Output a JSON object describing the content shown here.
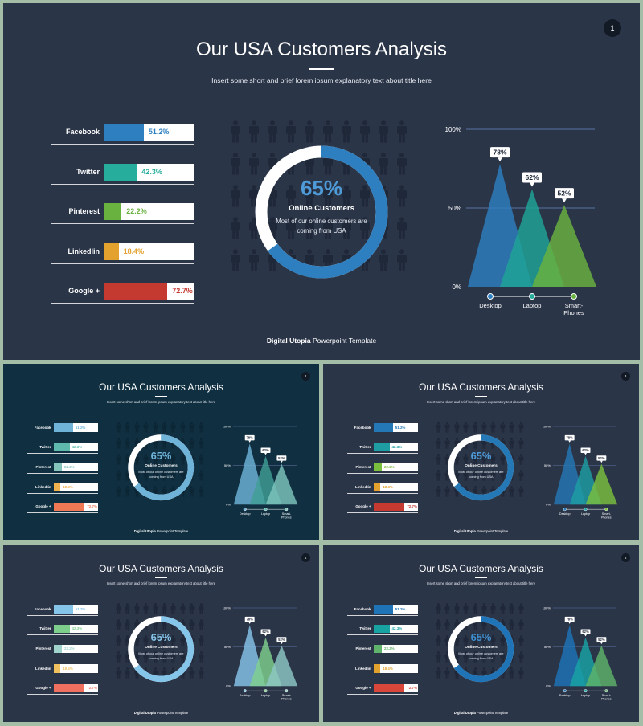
{
  "deck": {
    "title": "Our USA Customers Analysis",
    "subtitle": "Insert some short and brief lorem ipsum explanatory text about title here",
    "footer_bold": "Digital Utopia",
    "footer_rest": " Powerpoint Template"
  },
  "social": [
    {
      "label": "Facebook",
      "value_text": "51.2%",
      "value": 51.2
    },
    {
      "label": "Twitter",
      "value_text": "42.3%",
      "value": 42.3
    },
    {
      "label": "Pinterest",
      "value_text": "22.2%",
      "value": 22.2
    },
    {
      "label": "LinkedIin",
      "value_text": "18.4%",
      "value": 18.4
    },
    {
      "label": "Google +",
      "value_text": "72.7%",
      "value": 72.7
    }
  ],
  "donut": {
    "percent_text": "65%",
    "value": 65,
    "heading": "Online Customers",
    "line1": "Most of our online customers are",
    "line2": "coming from USA"
  },
  "devices": {
    "ticks": [
      "100%",
      "50%",
      "0%"
    ],
    "items": [
      {
        "label": "Desktop",
        "value_text": "78%",
        "value": 78
      },
      {
        "label": "Laptop",
        "value_text": "62%",
        "value": 62
      },
      {
        "label": "Smart-\nPhones",
        "value_text": "52%",
        "value": 52
      }
    ]
  },
  "slides": [
    {
      "number": "1",
      "theme": {
        "bg": "#2b3548",
        "bars": [
          "#2e7fc0",
          "#26ad9b",
          "#6ab23f",
          "#e3a22e",
          "#c43a30"
        ],
        "values": [
          "#2e7fc0",
          "#26ad9b",
          "#6ab23f",
          "#e3a22e",
          "#c43a30"
        ],
        "donut": "#2e7fc0",
        "donut_rest": "#ffffff",
        "donut_pct": "#4e9bd8",
        "people": "#1f2839",
        "tris": [
          "#2e7fc0",
          "#1fa596",
          "#6ab23f"
        ],
        "dots": [
          "#2e7fc0",
          "#26ad9b",
          "#6ab23f"
        ]
      }
    },
    {
      "number": "2",
      "theme": {
        "bg": "#103041",
        "bars": [
          "#6fb3d9",
          "#5fb9ad",
          "#85c4bb",
          "#f0b24e",
          "#f07855"
        ],
        "values": [
          "#6fb3d9",
          "#5fb9ad",
          "#85c4bb",
          "#f0b24e",
          "#f07855"
        ],
        "donut": "#6fb3d9",
        "donut_rest": "#ffffff",
        "donut_pct": "#6fb3d9",
        "people": "#0c2635",
        "tris": [
          "#6fb3d9",
          "#3f9e95",
          "#7ec4bd"
        ],
        "dots": [
          "#6fb3d9",
          "#5fb9ad",
          "#85c4bb"
        ]
      }
    },
    {
      "number": "3",
      "theme": {
        "bg": "#2b3548",
        "bars": [
          "#2478b5",
          "#1e9ea2",
          "#7bbf3e",
          "#e3a22e",
          "#c43a30"
        ],
        "values": [
          "#2478b5",
          "#1e9ea2",
          "#7bbf3e",
          "#e3a22e",
          "#c43a30"
        ],
        "donut": "#2478b5",
        "donut_rest": "#ffffff",
        "donut_pct": "#4e9bd8",
        "people": "#1f2839",
        "tris": [
          "#2478b5",
          "#1e9ea2",
          "#7bbf3e"
        ],
        "dots": [
          "#2478b5",
          "#1e9ea2",
          "#7bbf3e"
        ]
      }
    },
    {
      "number": "4",
      "theme": {
        "bg": "#2b3548",
        "bars": [
          "#86c5ea",
          "#7fcf8c",
          "#9fd3cc",
          "#f0c15e",
          "#f07060"
        ],
        "values": [
          "#86c5ea",
          "#7fcf8c",
          "#9fd3cc",
          "#f0c15e",
          "#f07060"
        ],
        "donut": "#86c5ea",
        "donut_rest": "#ffffff",
        "donut_pct": "#86c5ea",
        "people": "#1f2839",
        "tris": [
          "#86c5ea",
          "#7fcf8c",
          "#8fc8c4"
        ],
        "dots": [
          "#86c5ea",
          "#7fcf8c",
          "#9fd3cc"
        ]
      }
    },
    {
      "number": "5",
      "theme": {
        "bg": "#2b3548",
        "bars": [
          "#1f74b8",
          "#18a3a3",
          "#5fb36a",
          "#e3a22e",
          "#d9473a"
        ],
        "values": [
          "#1f74b8",
          "#18a3a3",
          "#5fb36a",
          "#e3a22e",
          "#d9473a"
        ],
        "donut": "#1f74b8",
        "donut_rest": "#ffffff",
        "donut_pct": "#3f8fd0",
        "people": "#1f2839",
        "tris": [
          "#1f74b8",
          "#18a3a3",
          "#5fb36a"
        ],
        "dots": [
          "#1f74b8",
          "#18a3a3",
          "#5fb36a"
        ]
      }
    }
  ]
}
